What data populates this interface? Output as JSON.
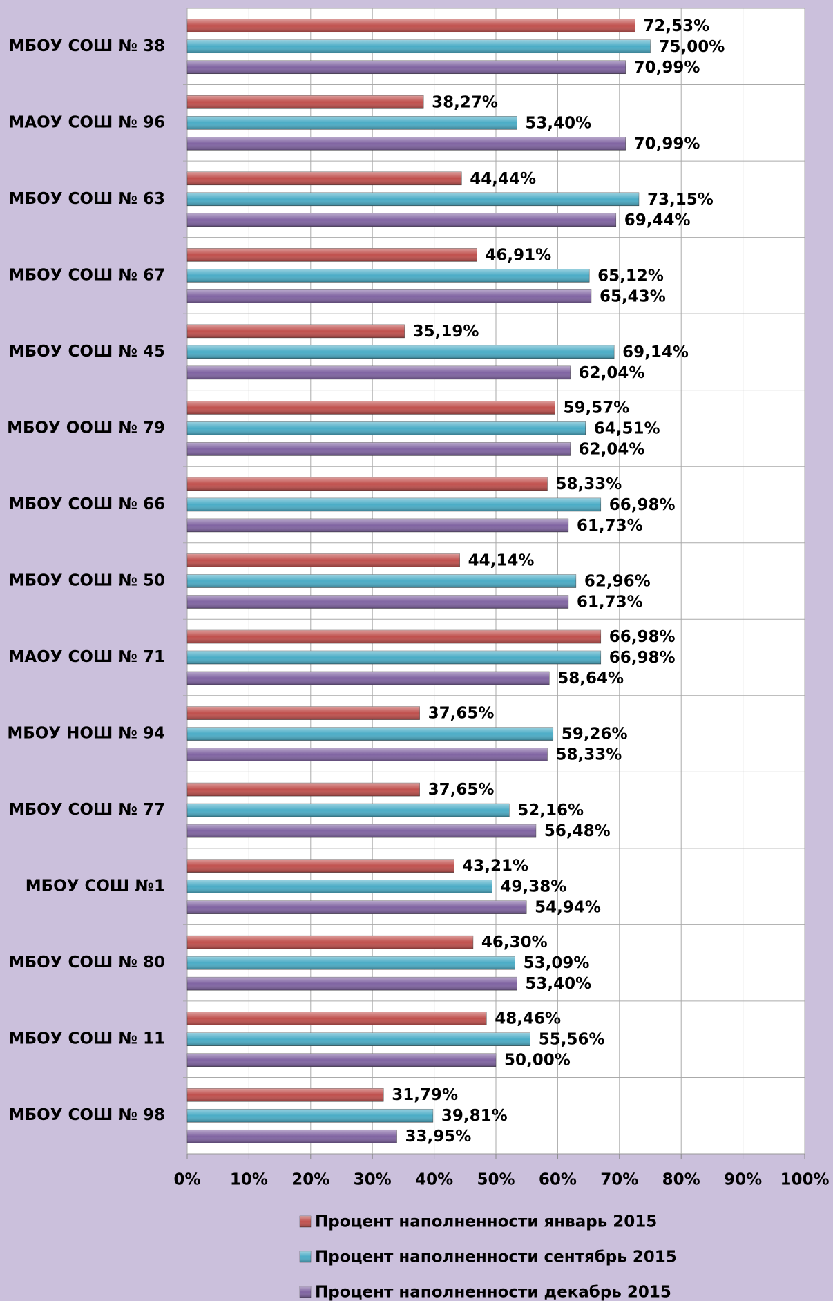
{
  "chart_data": {
    "type": "bar",
    "orientation": "horizontal",
    "categories": [
      "МБОУ СОШ № 38",
      "МАОУ СОШ № 96",
      "МБОУ СОШ № 63",
      "МБОУ СОШ № 67",
      "МБОУ СОШ № 45",
      "МБОУ ООШ № 79",
      "МБОУ СОШ № 66",
      "МБОУ СОШ № 50",
      "МАОУ СОШ № 71",
      "МБОУ НОШ № 94",
      "МБОУ СОШ № 77",
      "МБОУ СОШ №1",
      "МБОУ СОШ № 80",
      "МБОУ СОШ № 11",
      "МБОУ СОШ № 98"
    ],
    "series": [
      {
        "name": "Процент наполненности январь 2015",
        "color": "#c0504d",
        "values": [
          72.53,
          38.27,
          44.44,
          46.91,
          35.19,
          59.57,
          58.33,
          44.14,
          66.98,
          37.65,
          37.65,
          43.21,
          46.3,
          48.46,
          31.79
        ],
        "value_labels": [
          "72,53%",
          "38,27%",
          "44,44%",
          "46,91%",
          "35,19%",
          "59,57%",
          "58,33%",
          "44,14%",
          "66,98%",
          "37,65%",
          "37,65%",
          "43,21%",
          "46,30%",
          "48,46%",
          "31,79%"
        ]
      },
      {
        "name": "Процент наполненности сентябрь 2015",
        "color": "#4bacc6",
        "values": [
          75.0,
          53.4,
          73.15,
          65.12,
          69.14,
          64.51,
          66.98,
          62.96,
          66.98,
          59.26,
          52.16,
          49.38,
          53.09,
          55.56,
          39.81
        ],
        "value_labels": [
          "75,00%",
          "53,40%",
          "73,15%",
          "65,12%",
          "69,14%",
          "64,51%",
          "66,98%",
          "62,96%",
          "66,98%",
          "59,26%",
          "52,16%",
          "49,38%",
          "53,09%",
          "55,56%",
          "39,81%"
        ]
      },
      {
        "name": "Процент наполненности декабрь 2015",
        "color": "#8064a2",
        "values": [
          70.99,
          70.99,
          69.44,
          65.43,
          62.04,
          62.04,
          61.73,
          61.73,
          58.64,
          58.33,
          56.48,
          54.94,
          53.4,
          50.0,
          33.95
        ],
        "value_labels": [
          "70,99%",
          "70,99%",
          "69,44%",
          "65,43%",
          "62,04%",
          "62,04%",
          "61,73%",
          "61,73%",
          "58,64%",
          "58,33%",
          "56,48%",
          "54,94%",
          "53,40%",
          "50,00%",
          "33,95%"
        ]
      }
    ],
    "xlim": [
      0,
      100
    ],
    "xticks": [
      {
        "value": 0,
        "label": "0%"
      },
      {
        "value": 10,
        "label": "10%"
      },
      {
        "value": 20,
        "label": "20%"
      },
      {
        "value": 30,
        "label": "30%"
      },
      {
        "value": 40,
        "label": "40%"
      },
      {
        "value": 50,
        "label": "50%"
      },
      {
        "value": 60,
        "label": "60%"
      },
      {
        "value": 70,
        "label": "70%"
      },
      {
        "value": 80,
        "label": "80%"
      },
      {
        "value": 90,
        "label": "90%"
      },
      {
        "value": 100,
        "label": "100%"
      }
    ],
    "grid": true,
    "legend": "bottom"
  }
}
